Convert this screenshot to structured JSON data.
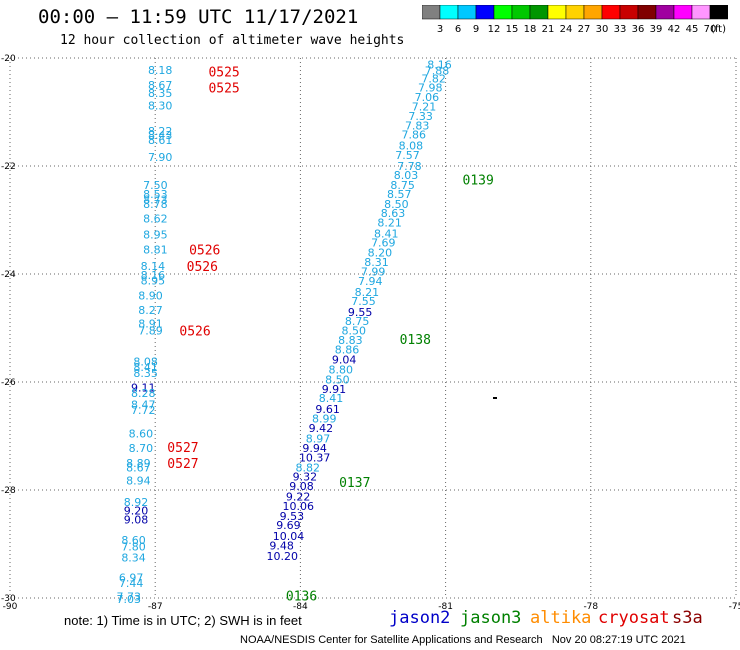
{
  "header": {
    "title": "00:00 — 11:59 UTC 11/17/2021",
    "subtitle": "12 hour collection of altimeter wave heights"
  },
  "colorbar": {
    "ticks": [
      "3",
      "6",
      "9",
      "12",
      "15",
      "18",
      "21",
      "24",
      "27",
      "30",
      "33",
      "36",
      "39",
      "42",
      "45",
      "70"
    ],
    "unit": "(ft)",
    "colors": [
      "#808080",
      "#00ffff",
      "#00c8ff",
      "#0000ff",
      "#00ff00",
      "#00c800",
      "#009600",
      "#ffff00",
      "#ffd200",
      "#ffa500",
      "#ff0000",
      "#c80000",
      "#800000",
      "#a000a0",
      "#ff00ff",
      "#ff96ff",
      "#000000"
    ]
  },
  "map": {
    "lat_labels": [
      "-20",
      "-22",
      "-24",
      "-26",
      "-28",
      "-30"
    ],
    "lon_labels": [
      "-90",
      "-87",
      "-84",
      "-81",
      "-78",
      "-75"
    ],
    "lat_range": [
      -30,
      -20
    ],
    "lon_range": [
      -90,
      -75
    ],
    "grid": "dotted",
    "height_colors": {
      "light": "#1fa7e0",
      "dark": "#0000a8"
    },
    "passes": [
      {
        "pass_id": "0525",
        "satellite": "cryosat",
        "color": "#e00000",
        "anchor_lat": -20.25,
        "anchor_lon": -85.9
      },
      {
        "pass_id": "0525",
        "satellite": "cryosat",
        "color": "#e00000",
        "anchor_lat": -20.55,
        "anchor_lon": -85.9
      },
      {
        "pass_id": "0526",
        "satellite": "cryosat",
        "color": "#e00000",
        "anchor_lat": -23.55,
        "anchor_lon": -86.3
      },
      {
        "pass_id": "0526",
        "satellite": "cryosat",
        "color": "#e00000",
        "anchor_lat": -23.85,
        "anchor_lon": -86.35
      },
      {
        "pass_id": "0526",
        "satellite": "cryosat",
        "color": "#e00000",
        "anchor_lat": -25.05,
        "anchor_lon": -86.5
      },
      {
        "pass_id": "0527",
        "satellite": "cryosat",
        "color": "#e00000",
        "anchor_lat": -27.2,
        "anchor_lon": -86.75
      },
      {
        "pass_id": "0527",
        "satellite": "cryosat",
        "color": "#e00000",
        "anchor_lat": -27.5,
        "anchor_lon": -86.75
      },
      {
        "pass_id": "0139",
        "satellite": "jason3",
        "color": "#008000",
        "anchor_lat": -22.25,
        "anchor_lon": -80.65
      },
      {
        "pass_id": "0138",
        "satellite": "jason3",
        "color": "#008000",
        "anchor_lat": -25.2,
        "anchor_lon": -81.95
      },
      {
        "pass_id": "0137",
        "satellite": "jason3",
        "color": "#008000",
        "anchor_lat": -27.85,
        "anchor_lon": -83.2
      },
      {
        "pass_id": "0136",
        "satellite": "jason3",
        "color": "#008000",
        "anchor_lat": -29.95,
        "anchor_lon": -84.3
      }
    ],
    "tracks": [
      {
        "name": "cryosat-track",
        "points": [
          {
            "v": "8.18",
            "lat": -20.22,
            "lon": -87.15,
            "c": "light"
          },
          {
            "v": "8.67",
            "lat": -20.5,
            "lon": -87.15,
            "c": "light"
          },
          {
            "v": "8.35",
            "lat": -20.65,
            "lon": -87.15,
            "c": "light"
          },
          {
            "v": "8.30",
            "lat": -20.88,
            "lon": -87.15,
            "c": "light"
          },
          {
            "v": "8.22",
            "lat": -21.35,
            "lon": -87.15,
            "c": "light"
          },
          {
            "v": "8.43",
            "lat": -21.43,
            "lon": -87.15,
            "c": "light"
          },
          {
            "v": "8.61",
            "lat": -21.52,
            "lon": -87.15,
            "c": "light"
          },
          {
            "v": "7.90",
            "lat": -21.83,
            "lon": -87.15,
            "c": "light"
          },
          {
            "v": "7.50",
            "lat": -22.35,
            "lon": -87.25,
            "c": "light"
          },
          {
            "v": "8.53",
            "lat": -22.52,
            "lon": -87.25,
            "c": "light"
          },
          {
            "v": "8.73",
            "lat": -22.62,
            "lon": -87.25,
            "c": "light"
          },
          {
            "v": "8.78",
            "lat": -22.7,
            "lon": -87.25,
            "c": "light"
          },
          {
            "v": "8.62",
            "lat": -22.97,
            "lon": -87.25,
            "c": "light"
          },
          {
            "v": "8.95",
            "lat": -23.27,
            "lon": -87.25,
            "c": "light"
          },
          {
            "v": "8.81",
            "lat": -23.55,
            "lon": -87.25,
            "c": "light"
          },
          {
            "v": "8.14",
            "lat": -23.85,
            "lon": -87.3,
            "c": "light"
          },
          {
            "v": "8.16",
            "lat": -24.02,
            "lon": -87.3,
            "c": "light"
          },
          {
            "v": "8.95",
            "lat": -24.12,
            "lon": -87.3,
            "c": "light"
          },
          {
            "v": "8.90",
            "lat": -24.4,
            "lon": -87.35,
            "c": "light"
          },
          {
            "v": "8.27",
            "lat": -24.67,
            "lon": -87.35,
            "c": "light"
          },
          {
            "v": "8.91",
            "lat": -24.92,
            "lon": -87.35,
            "c": "light"
          },
          {
            "v": "7.89",
            "lat": -25.05,
            "lon": -87.35,
            "c": "light"
          },
          {
            "v": "8.08",
            "lat": -25.62,
            "lon": -87.45,
            "c": "light"
          },
          {
            "v": "8.41",
            "lat": -25.72,
            "lon": -87.45,
            "c": "light"
          },
          {
            "v": "8.35",
            "lat": -25.83,
            "lon": -87.45,
            "c": "light"
          },
          {
            "v": "9.11",
            "lat": -26.1,
            "lon": -87.5,
            "c": "dark"
          },
          {
            "v": "8.28",
            "lat": -26.2,
            "lon": -87.5,
            "c": "light"
          },
          {
            "v": "8.47",
            "lat": -26.42,
            "lon": -87.5,
            "c": "light"
          },
          {
            "v": "7.72",
            "lat": -26.52,
            "lon": -87.5,
            "c": "light"
          },
          {
            "v": "8.60",
            "lat": -26.95,
            "lon": -87.55,
            "c": "light"
          },
          {
            "v": "8.70",
            "lat": -27.22,
            "lon": -87.55,
            "c": "light"
          },
          {
            "v": "8.89",
            "lat": -27.5,
            "lon": -87.6,
            "c": "light"
          },
          {
            "v": "8.67",
            "lat": -27.58,
            "lon": -87.6,
            "c": "light"
          },
          {
            "v": "8.94",
            "lat": -27.82,
            "lon": -87.6,
            "c": "light"
          },
          {
            "v": "8.92",
            "lat": -28.22,
            "lon": -87.65,
            "c": "light"
          },
          {
            "v": "9.20",
            "lat": -28.38,
            "lon": -87.65,
            "c": "dark"
          },
          {
            "v": "9.08",
            "lat": -28.55,
            "lon": -87.65,
            "c": "dark"
          },
          {
            "v": "8.60",
            "lat": -28.93,
            "lon": -87.7,
            "c": "light"
          },
          {
            "v": "7.80",
            "lat": -29.05,
            "lon": -87.7,
            "c": "light"
          },
          {
            "v": "8.34",
            "lat": -29.25,
            "lon": -87.7,
            "c": "light"
          },
          {
            "v": "6.97",
            "lat": -29.62,
            "lon": -87.75,
            "c": "light"
          },
          {
            "v": "7.44",
            "lat": -29.72,
            "lon": -87.75,
            "c": "light"
          },
          {
            "v": "7.73",
            "lat": -29.97,
            "lon": -87.8,
            "c": "light"
          },
          {
            "v": "7.03",
            "lat": -30.02,
            "lon": -87.8,
            "c": "light"
          }
        ]
      },
      {
        "name": "jason3-track",
        "points": [
          {
            "v": "8.16",
            "lat": -20.12,
            "lon": -81.38,
            "c": "light"
          },
          {
            "v": "7.88",
            "lat": -20.23,
            "lon": -81.43,
            "c": "light"
          },
          {
            "v": "7.82",
            "lat": -20.38,
            "lon": -81.5,
            "c": "light"
          },
          {
            "v": "7.98",
            "lat": -20.55,
            "lon": -81.57,
            "c": "light"
          },
          {
            "v": "7.06",
            "lat": -20.72,
            "lon": -81.64,
            "c": "light"
          },
          {
            "v": "7.21",
            "lat": -20.9,
            "lon": -81.7,
            "c": "light"
          },
          {
            "v": "7.33",
            "lat": -21.07,
            "lon": -81.77,
            "c": "light"
          },
          {
            "v": "7.83",
            "lat": -21.25,
            "lon": -81.84,
            "c": "light"
          },
          {
            "v": "7.86",
            "lat": -21.42,
            "lon": -81.91,
            "c": "light"
          },
          {
            "v": "8.08",
            "lat": -21.62,
            "lon": -81.97,
            "c": "light"
          },
          {
            "v": "7.57",
            "lat": -21.8,
            "lon": -82.04,
            "c": "light"
          },
          {
            "v": "7.78",
            "lat": -22.0,
            "lon": -82.0,
            "c": "light"
          },
          {
            "v": "8.03",
            "lat": -22.17,
            "lon": -82.07,
            "c": "light"
          },
          {
            "v": "8.75",
            "lat": -22.35,
            "lon": -82.14,
            "c": "light"
          },
          {
            "v": "8.57",
            "lat": -22.52,
            "lon": -82.21,
            "c": "light"
          },
          {
            "v": "8.50",
            "lat": -22.7,
            "lon": -82.27,
            "c": "light"
          },
          {
            "v": "8.63",
            "lat": -22.87,
            "lon": -82.34,
            "c": "light"
          },
          {
            "v": "8.21",
            "lat": -23.05,
            "lon": -82.41,
            "c": "light"
          },
          {
            "v": "8.41",
            "lat": -23.25,
            "lon": -82.48,
            "c": "light"
          },
          {
            "v": "7.69",
            "lat": -23.42,
            "lon": -82.54,
            "c": "light"
          },
          {
            "v": "8.20",
            "lat": -23.6,
            "lon": -82.61,
            "c": "light"
          },
          {
            "v": "8.31",
            "lat": -23.78,
            "lon": -82.68,
            "c": "light"
          },
          {
            "v": "7.99",
            "lat": -23.95,
            "lon": -82.75,
            "c": "light"
          },
          {
            "v": "7.94",
            "lat": -24.13,
            "lon": -82.81,
            "c": "light"
          },
          {
            "v": "8.21",
            "lat": -24.33,
            "lon": -82.88,
            "c": "light"
          },
          {
            "v": "7.55",
            "lat": -24.5,
            "lon": -82.95,
            "c": "light"
          },
          {
            "v": "9.55",
            "lat": -24.7,
            "lon": -83.02,
            "c": "dark"
          },
          {
            "v": "8.75",
            "lat": -24.87,
            "lon": -83.08,
            "c": "light"
          },
          {
            "v": "8.50",
            "lat": -25.05,
            "lon": -83.15,
            "c": "light"
          },
          {
            "v": "8.83",
            "lat": -25.22,
            "lon": -83.22,
            "c": "light"
          },
          {
            "v": "8.86",
            "lat": -25.4,
            "lon": -83.29,
            "c": "light"
          },
          {
            "v": "9.04",
            "lat": -25.58,
            "lon": -83.35,
            "c": "dark"
          },
          {
            "v": "8.80",
            "lat": -25.77,
            "lon": -83.42,
            "c": "light"
          },
          {
            "v": "8.50",
            "lat": -25.95,
            "lon": -83.49,
            "c": "light"
          },
          {
            "v": "9.91",
            "lat": -26.13,
            "lon": -83.56,
            "c": "dark"
          },
          {
            "v": "8.41",
            "lat": -26.3,
            "lon": -83.62,
            "c": "light"
          },
          {
            "v": "9.61",
            "lat": -26.5,
            "lon": -83.69,
            "c": "dark"
          },
          {
            "v": "8.99",
            "lat": -26.68,
            "lon": -83.76,
            "c": "light"
          },
          {
            "v": "9.42",
            "lat": -26.85,
            "lon": -83.83,
            "c": "dark"
          },
          {
            "v": "8.97",
            "lat": -27.05,
            "lon": -83.89,
            "c": "light"
          },
          {
            "v": "9.94",
            "lat": -27.22,
            "lon": -83.96,
            "c": "dark"
          },
          {
            "v": "10.37",
            "lat": -27.4,
            "lon": -84.03,
            "c": "dark"
          },
          {
            "v": "8.82",
            "lat": -27.58,
            "lon": -84.1,
            "c": "light"
          },
          {
            "v": "9.32",
            "lat": -27.75,
            "lon": -84.16,
            "c": "dark"
          },
          {
            "v": "9.08",
            "lat": -27.93,
            "lon": -84.23,
            "c": "dark"
          },
          {
            "v": "9.22",
            "lat": -28.12,
            "lon": -84.3,
            "c": "dark"
          },
          {
            "v": "10.06",
            "lat": -28.3,
            "lon": -84.37,
            "c": "dark"
          },
          {
            "v": "9.53",
            "lat": -28.48,
            "lon": -84.43,
            "c": "dark"
          },
          {
            "v": "9.69",
            "lat": -28.65,
            "lon": -84.5,
            "c": "dark"
          },
          {
            "v": "10.04",
            "lat": -28.85,
            "lon": -84.57,
            "c": "dark"
          },
          {
            "v": "9.48",
            "lat": -29.03,
            "lon": -84.64,
            "c": "dark"
          },
          {
            "v": "10.20",
            "lat": -29.22,
            "lon": -84.7,
            "c": "dark"
          }
        ]
      }
    ]
  },
  "legend": {
    "note": "note: 1) Time is in UTC; 2) SWH is in feet",
    "satellites": [
      {
        "name": "jason2",
        "color": "#0000c8"
      },
      {
        "name": "jason3",
        "color": "#008000"
      },
      {
        "name": "altika",
        "color": "#ff8c00"
      },
      {
        "name": "cryosat",
        "color": "#e00000"
      },
      {
        "name": "s3a",
        "color": "#8b0000"
      }
    ]
  },
  "footer": {
    "credit": "NOAA/NESDIS Center for Satellite Applications and Research",
    "timestamp": "Nov 20 08:27:19 UTC 2021"
  }
}
